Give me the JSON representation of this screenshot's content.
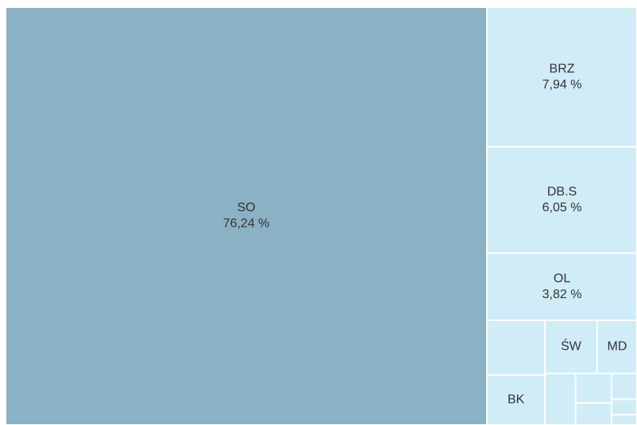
{
  "chart_data": {
    "type": "treemap",
    "categories": [
      "SO",
      "BRZ",
      "DB.S",
      "OL",
      null,
      "BK",
      "ŚW",
      "MD",
      null,
      null,
      null,
      null,
      null,
      null
    ],
    "values": [
      76.24,
      7.94,
      6.05,
      3.82,
      1.2,
      1.1,
      1.05,
      0.8,
      0.6,
      0.4,
      0.3,
      0.25,
      0.15,
      0.1
    ],
    "value_labels": [
      "76,24 %",
      "7,94 %",
      "6,05 %",
      "3,82 %",
      null,
      null,
      null,
      null,
      null,
      null,
      null,
      null,
      null,
      null
    ],
    "colors": [
      "#8ab1c4",
      "#d0ecf7",
      "#d0ecf7",
      "#d0ecf7",
      "#d0ecf7",
      "#d0ecf7",
      "#d0ecf7",
      "#d0ecf7",
      "#d0ecf7",
      "#d0ecf7",
      "#d0ecf7",
      "#d0ecf7",
      "#d0ecf7",
      "#d0ecf7"
    ]
  }
}
